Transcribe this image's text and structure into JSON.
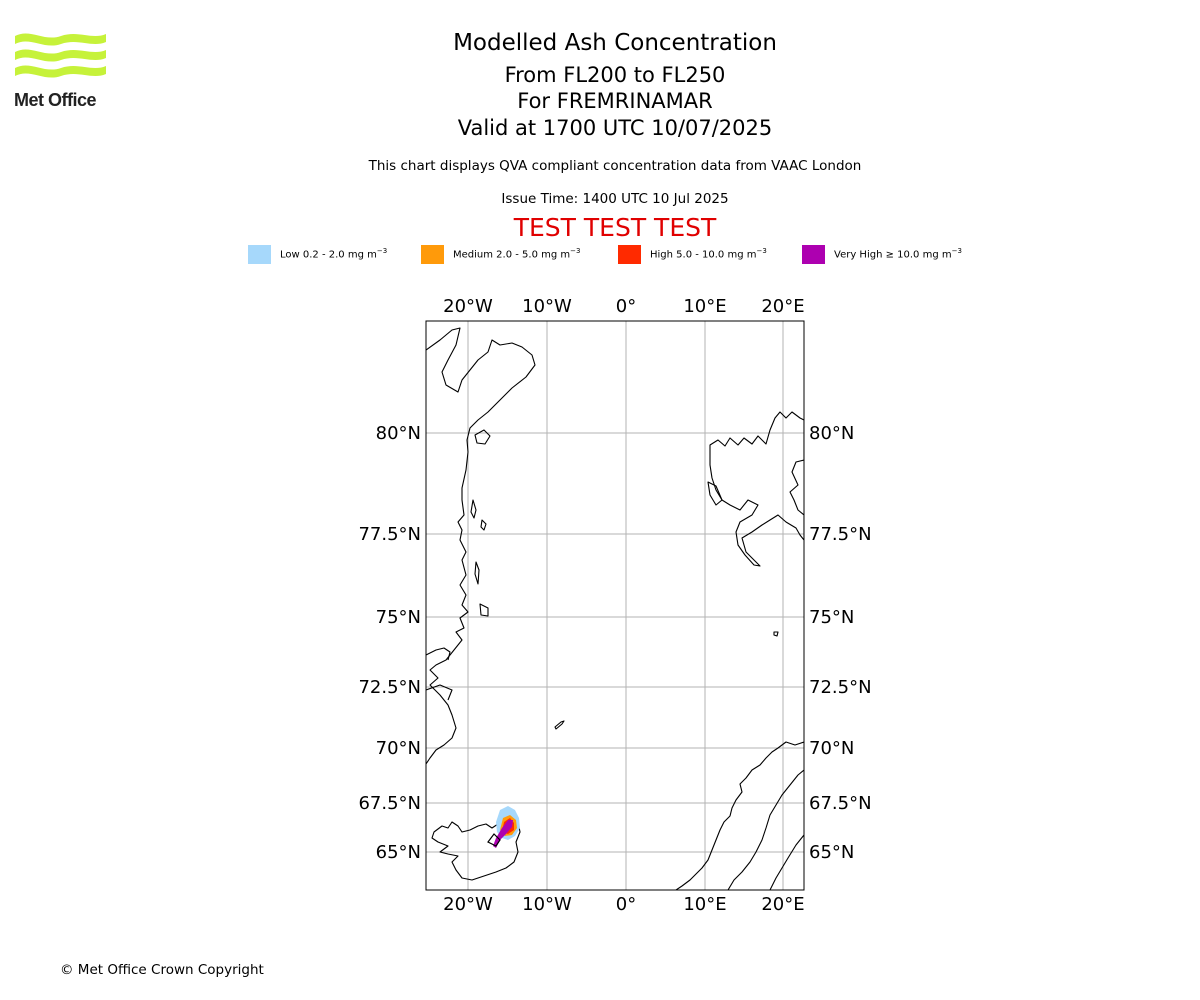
{
  "logo": {
    "text": "Met Office",
    "color": "#c6f23a"
  },
  "header": {
    "title": "Modelled Ash Concentration",
    "subtitle_levels": "From FL200 to FL250",
    "subtitle_volcano": "For FREMRINAMAR",
    "subtitle_valid": "Valid at 1700 UTC 10/07/2025",
    "note": "This chart displays QVA compliant concentration data from VAAC London",
    "issue_time": "Issue Time: 1400 UTC 10 Jul 2025",
    "test_banner": "TEST TEST TEST"
  },
  "legend": [
    {
      "label": "Low 0.2 - 2.0 mg m",
      "color": "#a6d8fb"
    },
    {
      "label": "Medium 2.0 - 5.0 mg m",
      "color": "#ff9a0a"
    },
    {
      "label": "High 5.0 - 10.0 mg m",
      "color": "#ff2a00"
    },
    {
      "label": "Very High ≥ 10.0 mg m",
      "color": "#ad00b0"
    }
  ],
  "legend_unit_exponent": "−3",
  "map": {
    "lon_ticks": [
      "20°W",
      "10°W",
      "0°",
      "10°E",
      "20°E"
    ],
    "lat_ticks": [
      "80°N",
      "77.5°N",
      "75°N",
      "72.5°N",
      "70°N",
      "67.5°N",
      "65°N"
    ],
    "grid": true
  },
  "footer": {
    "copyright": "© Met Office Crown Copyright"
  }
}
